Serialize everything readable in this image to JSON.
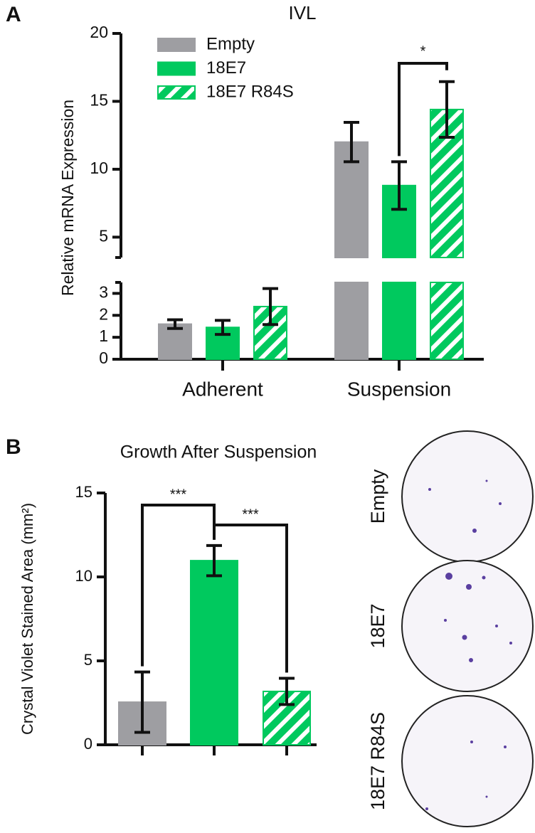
{
  "chart_data": [
    {
      "panel": "A",
      "type": "bar",
      "title": "IVL",
      "ylabel": "Relative mRNA Expression",
      "categories": [
        "Adherent",
        "Suspension"
      ],
      "series": [
        {
          "name": "Empty",
          "color": "#9e9ea2",
          "values": [
            1.6,
            12.0
          ],
          "errors": [
            0.2,
            1.45
          ]
        },
        {
          "name": "18E7",
          "color": "#00c95e",
          "values": [
            1.45,
            8.8
          ],
          "errors": [
            0.32,
            1.75
          ]
        },
        {
          "name": "18E7 R84S",
          "color": "#00c95e",
          "hatch": true,
          "values": [
            2.4,
            14.4
          ],
          "errors": [
            0.82,
            2.05
          ]
        }
      ],
      "ylim_lower": [
        0,
        3.5
      ],
      "ylim_upper": [
        3.5,
        20
      ],
      "yticks": [
        0,
        1,
        2,
        3,
        5,
        10,
        15,
        20
      ],
      "annotations": [
        "*"
      ],
      "legend": "upper left"
    },
    {
      "panel": "B",
      "type": "bar",
      "title": "Growth After Suspension",
      "ylabel": "Crystal Violet Stained Area (mm²)",
      "categories": [
        null,
        null,
        null
      ],
      "values": [
        2.54,
        10.97,
        3.18
      ],
      "errors": [
        1.8,
        0.9,
        0.78
      ],
      "colors": [
        "#9e9ea2",
        "#00c95e",
        "#00c95e"
      ],
      "hatch": [
        false,
        false,
        true
      ],
      "ylim": [
        0,
        15
      ],
      "yticks": [
        0,
        5,
        10,
        15
      ],
      "annotations": [
        "***",
        "***"
      ]
    }
  ],
  "plates": {
    "labels": [
      "Empty",
      "18E7",
      "18E7 R84S"
    ]
  }
}
